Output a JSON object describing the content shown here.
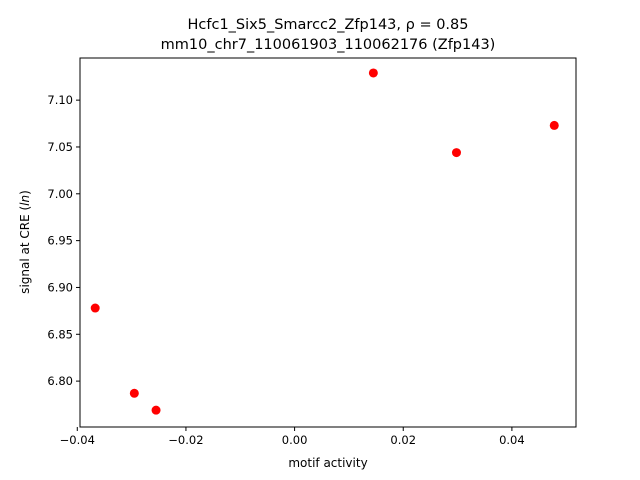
{
  "chart_data": {
    "type": "scatter",
    "title_line1": "Hcfc1_Six5_Smarcc2_Zfp143, ρ = 0.85",
    "title_line2": "mm10_chr7_110061903_110062176 (Zfp143)",
    "xlabel": "motif activity",
    "ylabel_prefix": "signal at CRE (",
    "ylabel_italic": "ln",
    "ylabel_suffix": ")",
    "xlim": [
      -0.0395,
      0.0518
    ],
    "ylim": [
      6.751,
      7.145
    ],
    "xticks": [
      -0.04,
      -0.02,
      0.0,
      0.02,
      0.04
    ],
    "xtick_labels": [
      "−0.04",
      "−0.02",
      "0.00",
      "0.02",
      "0.04"
    ],
    "yticks": [
      6.8,
      6.85,
      6.9,
      6.95,
      7.0,
      7.05,
      7.1
    ],
    "ytick_labels": [
      "6.80",
      "6.85",
      "6.90",
      "6.95",
      "7.00",
      "7.05",
      "7.10"
    ],
    "grid": false,
    "marker_color": "#ff0000",
    "points": [
      {
        "x": -0.0367,
        "y": 6.878
      },
      {
        "x": -0.0295,
        "y": 6.787
      },
      {
        "x": -0.0255,
        "y": 6.769
      },
      {
        "x": 0.0145,
        "y": 7.129
      },
      {
        "x": 0.0298,
        "y": 7.044
      },
      {
        "x": 0.0478,
        "y": 7.073
      }
    ]
  }
}
